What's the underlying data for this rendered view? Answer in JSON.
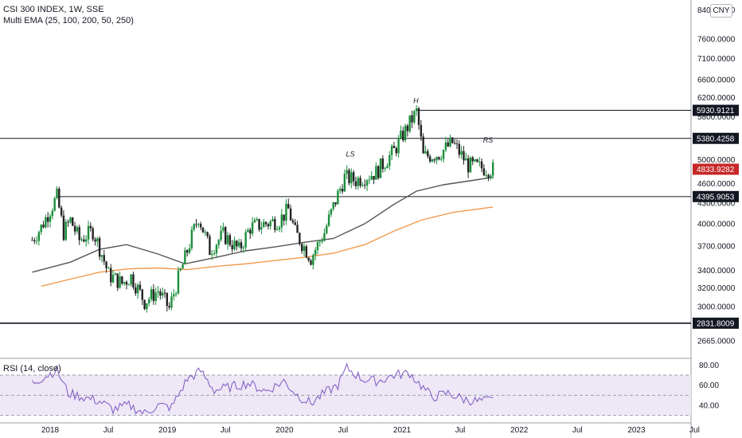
{
  "header": {
    "title": "CSI 300 INDEX, 1W, SSE",
    "indicator": "Multi EMA (25, 100, 200, 50, 250)",
    "currency": "CNY"
  },
  "rsi": {
    "label": "RSI (14, close)",
    "levels": [
      80.0,
      60.0,
      40.0
    ]
  },
  "colors": {
    "up": "#26a69a",
    "down": "#ef5350",
    "candle_up": "#1b8e3c",
    "candle_down": "#222222",
    "ema_dark": "#555555",
    "ema_orange": "#f2994a",
    "rsi_line": "#7e57c2",
    "rsi_band": "#ede7f6",
    "last_price_tag": "#c62828"
  },
  "chart_data": [
    {
      "type": "candlestick",
      "title": "CSI 300 INDEX, 1W, SSE",
      "x_axis_labels": [
        "2018",
        "Jul",
        "2019",
        "Jul",
        "2020",
        "Jul",
        "2021",
        "Jul",
        "2022",
        "Jul",
        "2023",
        "Jul"
      ],
      "y_axis_ticks": [
        "8400.0000",
        "7600.0000",
        "7100.0000",
        "6600.0000",
        "6200.0000",
        "5800.0000",
        "5000.0000",
        "4600.0000",
        "4300.0000",
        "4000.0000",
        "3700.0000",
        "3400.0000",
        "3200.0000",
        "3000.0000",
        "2665.0000"
      ],
      "scale": "log",
      "ylim": [
        2520,
        8700
      ],
      "horizontal_levels": [
        {
          "value": 5930.9121,
          "label": "5930.9121"
        },
        {
          "value": 5380.4258,
          "label": "5380.4258"
        },
        {
          "value": 4395.9053,
          "label": "4395.9053"
        },
        {
          "value": 2831.8009,
          "label": "2831.8009"
        }
      ],
      "last_price": {
        "value": 4833.9282,
        "label": "4833.9282"
      },
      "annotations": [
        {
          "text": "LS",
          "date": "2020-07-20",
          "value": 5050
        },
        {
          "text": "H",
          "date": "2021-02-15",
          "value": 6080
        },
        {
          "text": "RS",
          "date": "2021-09-20",
          "value": 5300
        }
      ],
      "price_path": [
        [
          "2017-11-06",
          3780
        ],
        [
          "2017-12-04",
          3950
        ],
        [
          "2018-01-22",
          4390
        ],
        [
          "2018-02-12",
          3880
        ],
        [
          "2018-03-05",
          4050
        ],
        [
          "2018-04-02",
          3780
        ],
        [
          "2018-05-14",
          3900
        ],
        [
          "2018-06-11",
          3600
        ],
        [
          "2018-07-02",
          3350
        ],
        [
          "2018-08-13",
          3250
        ],
        [
          "2018-09-10",
          3330
        ],
        [
          "2018-10-22",
          3050
        ],
        [
          "2018-12-03",
          3170
        ],
        [
          "2019-01-07",
          2980
        ],
        [
          "2019-02-25",
          3550
        ],
        [
          "2019-04-08",
          4100
        ],
        [
          "2019-05-13",
          3650
        ],
        [
          "2019-06-24",
          3850
        ],
        [
          "2019-08-12",
          3650
        ],
        [
          "2019-09-16",
          3950
        ],
        [
          "2019-12-16",
          4050
        ],
        [
          "2020-01-13",
          4200
        ],
        [
          "2020-02-03",
          3880
        ],
        [
          "2020-03-23",
          3550
        ],
        [
          "2020-05-04",
          3880
        ],
        [
          "2020-07-06",
          4700
        ],
        [
          "2020-08-10",
          4650
        ],
        [
          "2020-10-12",
          4780
        ],
        [
          "2020-12-07",
          5150
        ],
        [
          "2021-02-15",
          5900
        ],
        [
          "2021-03-08",
          5050
        ],
        [
          "2021-04-26",
          5100
        ],
        [
          "2021-06-07",
          5300
        ],
        [
          "2021-07-26",
          4900
        ],
        [
          "2021-09-13",
          4850
        ],
        [
          "2021-10-11",
          4834
        ]
      ],
      "series": [
        {
          "name": "EMA (dark)",
          "x": [
            "2017-11-06",
            "2018-03-05",
            "2018-06-04",
            "2018-08-27",
            "2018-12-03",
            "2019-02-25",
            "2019-06-03",
            "2019-09-02",
            "2019-12-02",
            "2020-03-02",
            "2020-06-01",
            "2020-09-07",
            "2020-12-07",
            "2021-02-15",
            "2021-05-10",
            "2021-08-09",
            "2021-10-11"
          ],
          "values": [
            3380,
            3500,
            3660,
            3720,
            3600,
            3480,
            3560,
            3640,
            3690,
            3750,
            3800,
            4000,
            4280,
            4480,
            4580,
            4650,
            4700
          ]
        },
        {
          "name": "EMA (orange)",
          "x": [
            "2017-12-04",
            "2018-03-05",
            "2018-06-04",
            "2018-09-03",
            "2018-12-03",
            "2019-03-04",
            "2019-06-03",
            "2019-09-02",
            "2019-12-02",
            "2020-03-02",
            "2020-06-01",
            "2020-09-07",
            "2020-12-07",
            "2021-03-01",
            "2021-06-07",
            "2021-10-11"
          ],
          "values": [
            3220,
            3300,
            3380,
            3420,
            3430,
            3410,
            3450,
            3480,
            3520,
            3560,
            3610,
            3720,
            3900,
            4050,
            4160,
            4240
          ]
        }
      ]
    },
    {
      "type": "line",
      "title": "RSI (14, close)",
      "y_axis_ticks": [
        "80.00",
        "60.00",
        "40.00"
      ],
      "ylim": [
        25,
        85
      ],
      "bands": [
        30,
        50,
        70
      ],
      "series": [
        {
          "name": "RSI",
          "x": [
            "2017-11-06",
            "2017-12-11",
            "2018-01-22",
            "2018-02-26",
            "2018-04-16",
            "2018-06-04",
            "2018-07-16",
            "2018-09-03",
            "2018-10-22",
            "2018-12-03",
            "2019-01-14",
            "2019-03-04",
            "2019-04-15",
            "2019-05-27",
            "2019-07-15",
            "2019-09-09",
            "2019-11-04",
            "2019-12-30",
            "2020-02-10",
            "2020-03-23",
            "2020-05-04",
            "2020-06-15",
            "2020-07-13",
            "2020-08-31",
            "2020-10-19",
            "2020-12-07",
            "2021-01-25",
            "2021-02-22",
            "2021-04-05",
            "2021-05-24",
            "2021-07-12",
            "2021-08-23",
            "2021-10-11"
          ],
          "values": [
            62,
            68,
            75,
            52,
            48,
            44,
            36,
            40,
            32,
            40,
            38,
            66,
            74,
            55,
            58,
            62,
            54,
            64,
            50,
            42,
            52,
            60,
            77,
            66,
            64,
            70,
            72,
            62,
            48,
            52,
            46,
            44,
            45
          ]
        }
      ]
    }
  ]
}
